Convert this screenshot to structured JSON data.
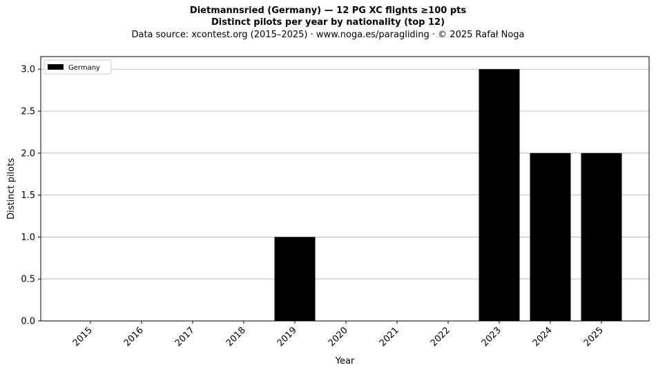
{
  "chart_data": {
    "type": "bar",
    "title": "Dietmannsried (Germany)  —  12 PG XC flights ≥100 pts",
    "subtitle": "Distinct pilots per year by nationality (top 12)",
    "source_note": "Data source: xcontest.org (2015–2025)  ·  www.noga.es/paragliding  ·  © 2025 Rafał Noga",
    "xlabel": "Year",
    "ylabel": "Distinct pilots",
    "categories": [
      "2015",
      "2016",
      "2017",
      "2018",
      "2019",
      "2020",
      "2021",
      "2022",
      "2023",
      "2024",
      "2025"
    ],
    "series": [
      {
        "name": "Germany",
        "color": "#000000",
        "values": [
          0,
          0,
          0,
          0,
          1,
          0,
          0,
          0,
          3,
          2,
          2
        ]
      }
    ],
    "ylim": [
      0,
      3.15
    ],
    "yticks": [
      0.0,
      0.5,
      1.0,
      1.5,
      2.0,
      2.5,
      3.0
    ],
    "ytick_labels": [
      "0.0",
      "0.5",
      "1.0",
      "1.5",
      "2.0",
      "2.5",
      "3.0"
    ],
    "grid": "y",
    "legend_position": "top-left",
    "colors": {
      "bar": "#000000",
      "grid": "#b0b0b0",
      "axis": "#000000"
    }
  }
}
